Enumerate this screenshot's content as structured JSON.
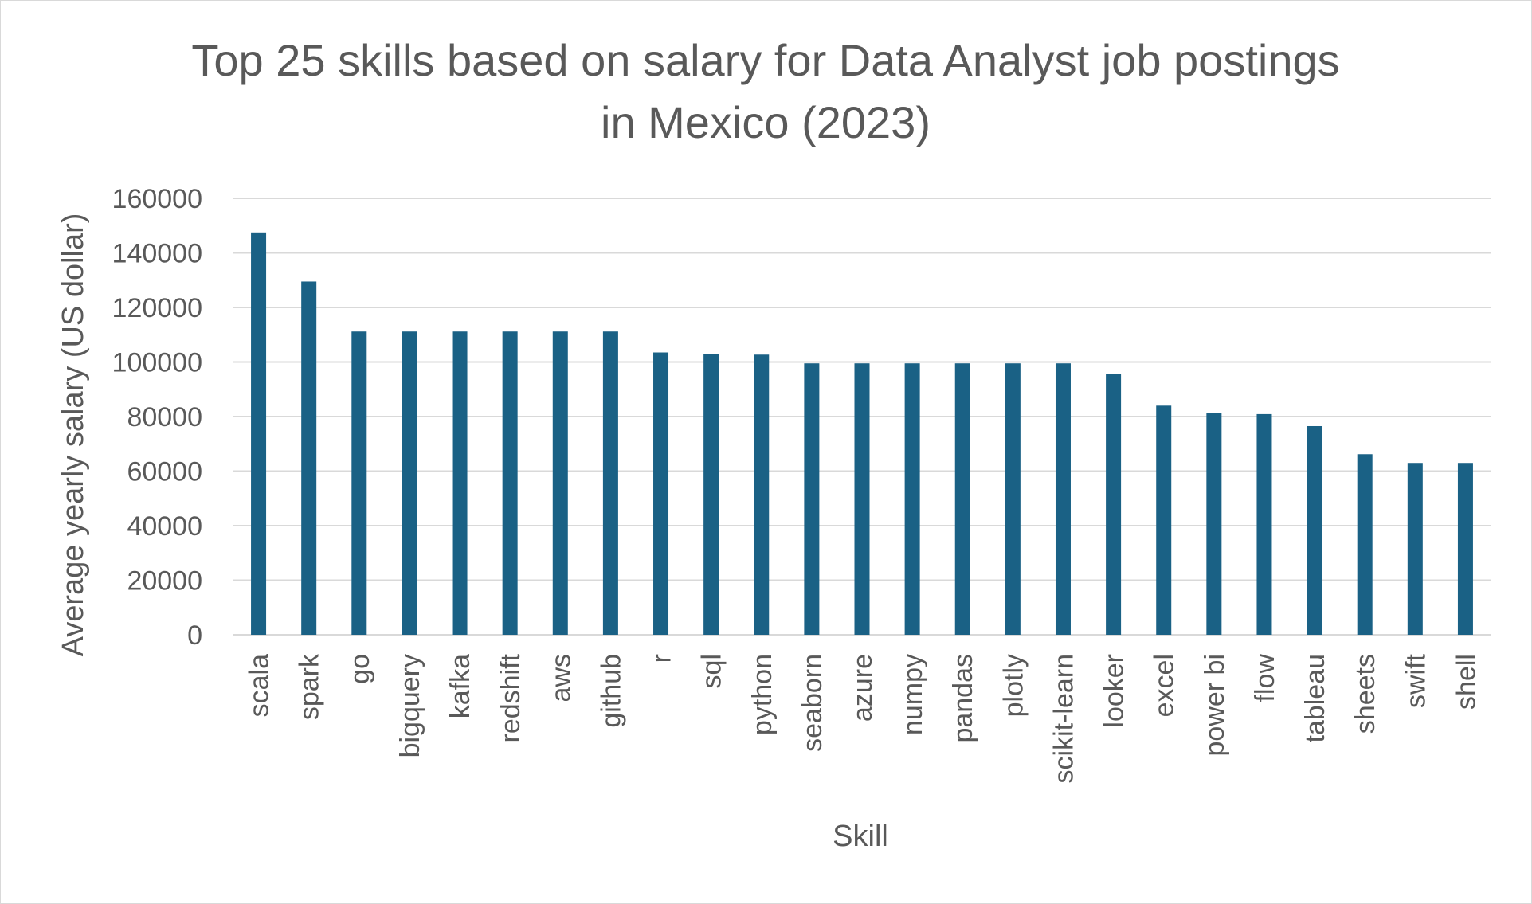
{
  "chart_data": {
    "type": "bar",
    "title_lines": [
      "Top 25 skills based on salary for Data Analyst job postings",
      "in Mexico (2023)"
    ],
    "xlabel": "Skill",
    "ylabel": "Average  yearly salary (US dollar)",
    "ylim": [
      0,
      160000
    ],
    "yticks": [
      "0",
      "20000",
      "40000",
      "60000",
      "80000",
      "100000",
      "120000",
      "140000",
      "160000"
    ],
    "grid": true,
    "legend": "none",
    "bar_color": "#1a6185",
    "categories": [
      "scala",
      "spark",
      "go",
      "bigquery",
      "kafka",
      "redshift",
      "aws",
      "github",
      "r",
      "sql",
      "python",
      "seaborn",
      "azure",
      "numpy",
      "pandas",
      "plotly",
      "scikit-learn",
      "looker",
      "excel",
      "power bi",
      "flow",
      "tableau",
      "sheets",
      "swift",
      "shell"
    ],
    "values": [
      147500,
      129500,
      111175,
      111175,
      111175,
      111175,
      111175,
      111175,
      103500,
      103000,
      102700,
      99500,
      99500,
      99500,
      99500,
      99500,
      99500,
      95500,
      84000,
      81200,
      80900,
      76500,
      66200,
      63000,
      63000
    ]
  }
}
